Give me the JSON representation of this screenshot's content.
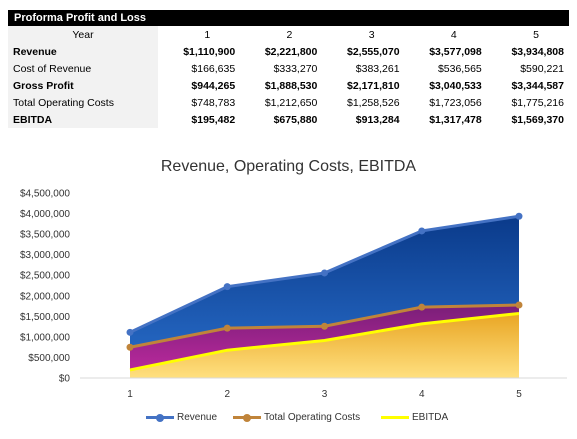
{
  "table": {
    "title": "Proforma Profit and Loss",
    "header_label": "Year",
    "years": [
      "1",
      "2",
      "3",
      "4",
      "5"
    ],
    "rows": [
      {
        "label": "Revenue",
        "bold": true,
        "values": [
          "$1,110,900",
          "$2,221,800",
          "$2,555,070",
          "$3,577,098",
          "$3,934,808"
        ]
      },
      {
        "label": "Cost of Revenue",
        "bold": false,
        "values": [
          "$166,635",
          "$333,270",
          "$383,261",
          "$536,565",
          "$590,221"
        ]
      },
      {
        "label": "Gross Profit",
        "bold": true,
        "values": [
          "$944,265",
          "$1,888,530",
          "$2,171,810",
          "$3,040,533",
          "$3,344,587"
        ]
      },
      {
        "label": "Total Operating Costs",
        "bold": false,
        "values": [
          "$748,783",
          "$1,212,650",
          "$1,258,526",
          "$1,723,056",
          "$1,775,216"
        ]
      },
      {
        "label": "EBITDA",
        "bold": true,
        "values": [
          "$195,482",
          "$675,880",
          "$913,284",
          "$1,317,478",
          "$1,569,370"
        ]
      }
    ]
  },
  "chart_data": {
    "type": "area",
    "title": "Revenue, Operating Costs, EBITDA",
    "xlabel": "",
    "ylabel": "",
    "x": [
      1,
      2,
      3,
      4,
      5
    ],
    "x_tick_labels": [
      "1",
      "2",
      "3",
      "4",
      "5"
    ],
    "ylim": [
      0,
      4500000
    ],
    "y_ticks": [
      0,
      500000,
      1000000,
      1500000,
      2000000,
      2500000,
      3000000,
      3500000,
      4000000,
      4500000
    ],
    "y_tick_labels": [
      "$0",
      "$500,000",
      "$1,000,000",
      "$1,500,000",
      "$2,000,000",
      "$2,500,000",
      "$3,000,000",
      "$3,500,000",
      "$4,000,000",
      "$4,500,000"
    ],
    "grid": false,
    "legend_position": "bottom",
    "series": [
      {
        "name": "Revenue",
        "values": [
          1110900,
          2221800,
          2555070,
          3577098,
          3934808
        ],
        "color": "#4472c4",
        "fill": "#1f5fb0"
      },
      {
        "name": "Total Operating Costs",
        "values": [
          748783,
          1212650,
          1258526,
          1723056,
          1775216
        ],
        "color": "#c0843a",
        "fill": "#9b2a8f"
      },
      {
        "name": "EBITDA",
        "values": [
          195482,
          675880,
          913284,
          1317478,
          1569370
        ],
        "color": "#ffff00",
        "fill": "#f5c445"
      }
    ]
  }
}
